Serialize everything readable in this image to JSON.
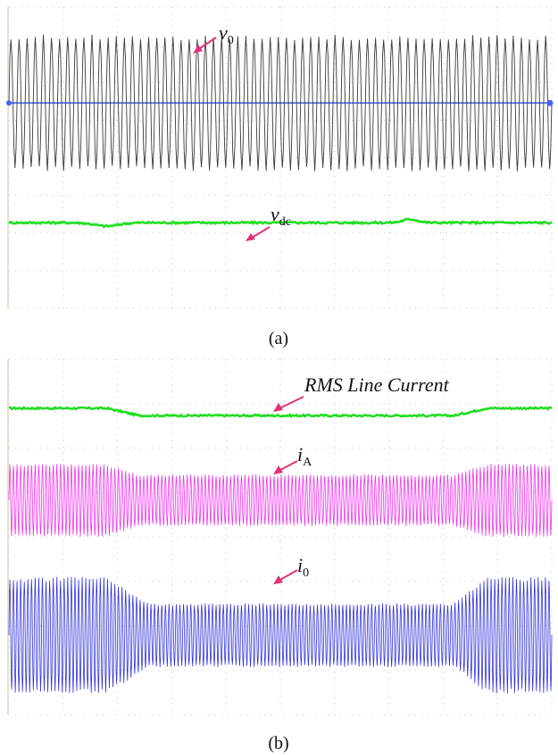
{
  "chart_data": [
    {
      "type": "line",
      "caption": "(a)",
      "series": [
        {
          "name": "v",
          "subscript": "0",
          "color": "#3a3a3a",
          "kind": "ac",
          "offset": 0.0,
          "amplitude": 1.0,
          "cycles": 67
        },
        {
          "name": "v",
          "subscript": "dc",
          "color": "#22dd22",
          "kind": "dc",
          "level": -1.75
        }
      ],
      "reference_line": {
        "y": 0.0,
        "color": "#4466ee"
      },
      "ylim": [
        -3.0,
        1.4
      ],
      "grid": "dotted"
    },
    {
      "type": "line",
      "caption": "(b)",
      "series": [
        {
          "name": "RMS Line Current",
          "color": "#22dd22",
          "kind": "envelope",
          "offset": 1.5,
          "envelope": [
            [
              0,
              0.0
            ],
            [
              0.18,
              0.0
            ],
            [
              0.24,
              -0.12
            ],
            [
              0.82,
              -0.12
            ],
            [
              0.88,
              0.0
            ],
            [
              1,
              0.0
            ]
          ]
        },
        {
          "name": "i",
          "subscript": "A",
          "color": "#ee33ee",
          "kind": "ac",
          "offset": 0.0,
          "amplitude": 0.6,
          "cycles": 150,
          "envelope": [
            [
              0,
              1.0
            ],
            [
              0.18,
              1.0
            ],
            [
              0.24,
              0.7
            ],
            [
              0.82,
              0.7
            ],
            [
              0.88,
              1.0
            ],
            [
              1,
              1.0
            ]
          ]
        },
        {
          "name": "i",
          "subscript": "0",
          "color": "#3333dd",
          "kind": "ac",
          "offset": -2.2,
          "amplitude": 0.95,
          "cycles": 150,
          "envelope": [
            [
              0,
              1.0
            ],
            [
              0.18,
              1.0
            ],
            [
              0.26,
              0.55
            ],
            [
              0.82,
              0.55
            ],
            [
              0.88,
              1.0
            ],
            [
              1,
              1.0
            ]
          ]
        }
      ],
      "ylim": [
        -3.5,
        2.3
      ],
      "grid": "dotted"
    }
  ]
}
